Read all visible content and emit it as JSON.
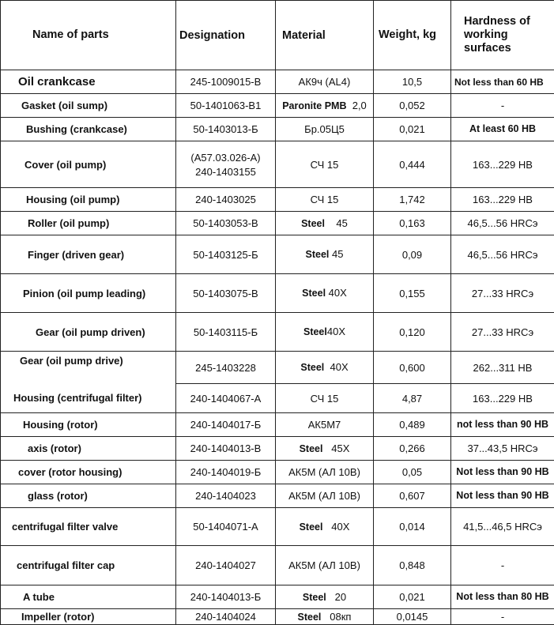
{
  "headers": [
    "Name of parts",
    "Designation",
    "Material",
    "Weight, kg",
    "Hardness of working surfaces"
  ],
  "rows": [
    {
      "name": "Oil crankcase",
      "designation": "245-1009015-B",
      "material": "АК9ч (AL4)",
      "weight": "10,5",
      "hardness": "Not less than 60 HB"
    },
    {
      "name": "Gasket (oil sump)",
      "designation": "50-1401063-B1",
      "material": "Paronite PMB  2,0",
      "weight": "0,052",
      "hardness": "-"
    },
    {
      "name": "Bushing (crankcase)",
      "designation": "50-1403013-Б",
      "material": "Бр.05Ц5",
      "weight": "0,021",
      "hardness": "At least 60 HB"
    },
    {
      "name": "Cover (oil pump)",
      "designation": "(A57.03.026-A)",
      "designation2": "240-1403155",
      "material": "СЧ 15",
      "weight": "0,444",
      "hardness": "163...229 HB"
    },
    {
      "name": "Housing (oil pump)",
      "designation": "240-1403025",
      "material": "СЧ 15",
      "weight": "1,742",
      "hardness": "163...229 HB"
    },
    {
      "name": "Roller (oil pump)",
      "designation": "50-1403053-B",
      "material": "Steel    45",
      "weight": "0,163",
      "hardness": "46,5...56 HRCэ"
    },
    {
      "name": "Finger (driven gear)",
      "designation": "50-1403125-Б",
      "material": "Steel 45",
      "weight": "0,09",
      "hardness": "46,5...56 HRCэ"
    },
    {
      "name": "Pinion (oil pump leading)",
      "designation": "50-1403075-B",
      "material": "Steel 40X",
      "weight": "0,155",
      "hardness": "27...33 HRCэ"
    },
    {
      "name": "Gear (oil pump driven)",
      "designation": "50-1403115-Б",
      "material": "Steel40X",
      "weight": "0,120",
      "hardness": "27...33 HRCэ"
    },
    {
      "name": "Gear (oil pump drive)",
      "designation": "245-1403228",
      "material": "Steel  40X",
      "weight": "0,600",
      "hardness": "262...311 HB"
    },
    {
      "name": "Housing (centrifugal filter)",
      "designation": "240-1404067-A",
      "material": "СЧ 15",
      "weight": "4,87",
      "hardness": "163...229 HB"
    },
    {
      "name": "Housing (rotor)",
      "designation": "240-1404017-Б",
      "material": "АК5М7",
      "weight": "0,489",
      "hardness": "not less than 90 HB"
    },
    {
      "name": "axis (rotor)",
      "designation": "240-1404013-B",
      "material": "Steel   45X",
      "weight": "0,266",
      "hardness": "37...43,5 HRCэ"
    },
    {
      "name": "cover (rotor housing)",
      "designation": "240-1404019-Б",
      "material": "АК5М (АЛ 10В)",
      "weight": "0,05",
      "hardness": "Not less than 90 HB"
    },
    {
      "name": "glass (rotor)",
      "designation": "240-1404023",
      "material": "АК5М (АЛ 10В)",
      "weight": "0,607",
      "hardness": "Not less than 90 HB"
    },
    {
      "name": "centrifugal filter valve",
      "designation": "50-1404071-A",
      "material": "Steel   40X",
      "weight": "0,014",
      "hardness": "41,5...46,5 HRCэ"
    },
    {
      "name": "centrifugal filter cap",
      "designation": "240-1404027",
      "material": "АК5М (АЛ 10В)",
      "weight": "0,848",
      "hardness": "-"
    },
    {
      "name": "A tube",
      "designation": "240-1404013-Б",
      "material": "Steel   20",
      "weight": "0,021",
      "hardness": "Not less than 80 HB"
    },
    {
      "name": "Impeller (rotor)",
      "designation": "240-1404024",
      "material": "Steel   08кп",
      "weight": "0,0145",
      "hardness": "-"
    }
  ]
}
